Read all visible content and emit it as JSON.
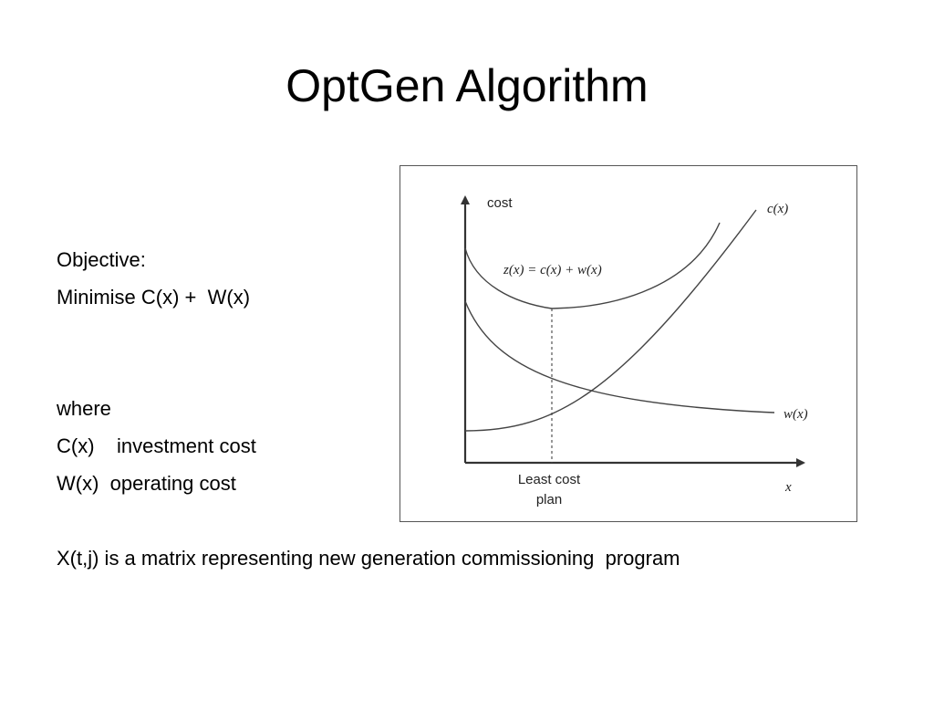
{
  "slide": {
    "title": "OptGen Algorithm",
    "objective_label": "Objective:",
    "objective_text": "Minimise C(x) +  W(x)",
    "where_label": "where",
    "def_c": "C(x)    investment cost",
    "def_w": "W(x)  operating cost",
    "matrix_note": "X(t,j) is a matrix representing new generation commissioning  program"
  },
  "figure": {
    "y_axis_label": "cost",
    "x_axis_label": "x",
    "curve_z_label": "z(x) = c(x) + w(x)",
    "curve_c_label": "c(x)",
    "curve_w_label": "w(x)",
    "least_cost_line1": "Least cost",
    "least_cost_line2": "plan"
  }
}
